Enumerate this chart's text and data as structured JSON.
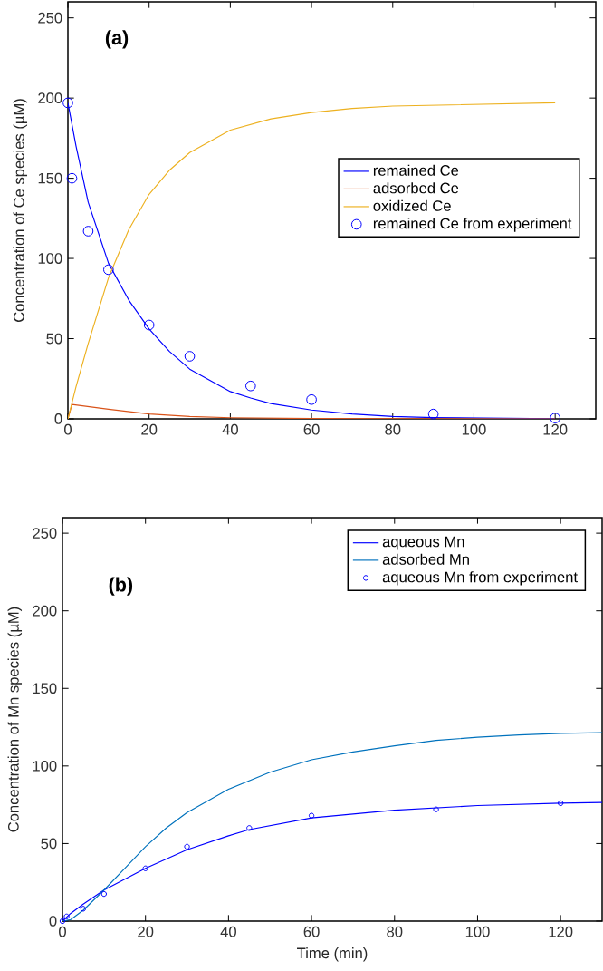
{
  "chart_data": [
    {
      "type": "line",
      "annotations": [
        "(a)"
      ],
      "ylabel": "Concentration of Ce species (µM)",
      "xlim": [
        0,
        130
      ],
      "ylim": [
        0,
        260
      ],
      "xticks": [
        0,
        20,
        40,
        60,
        80,
        100,
        120
      ],
      "yticks": [
        0,
        50,
        100,
        150,
        200,
        250
      ],
      "legend": "right",
      "series": [
        {
          "name": "remained Ce",
          "color": "#0000ff",
          "x": [
            0,
            2,
            5,
            10,
            15,
            20,
            25,
            30,
            40,
            45,
            50,
            60,
            70,
            80,
            90,
            120
          ],
          "values": [
            197,
            170,
            135,
            97,
            74,
            56,
            42,
            31,
            17,
            13,
            9.5,
            5.5,
            3,
            1.5,
            0.8,
            0.1
          ]
        },
        {
          "name": "adsorbed Ce",
          "color": "#d95319",
          "x": [
            0,
            1,
            10,
            20,
            30,
            40,
            60,
            120
          ],
          "values": [
            0,
            9,
            6,
            3,
            1.5,
            0.7,
            0.2,
            0
          ]
        },
        {
          "name": "oxidized Ce",
          "color": "#edb120",
          "x": [
            0,
            2,
            5,
            10,
            15,
            20,
            25,
            30,
            40,
            50,
            60,
            70,
            80,
            100,
            120
          ],
          "values": [
            0,
            20,
            47,
            88,
            118,
            140,
            155,
            166,
            180,
            187,
            191,
            193.5,
            195,
            196,
            197
          ]
        },
        {
          "name": "remained Ce from experiment",
          "type": "scatter",
          "marker": "circle",
          "color": "#0000ff",
          "x": [
            0,
            1,
            5,
            10,
            20,
            30,
            45,
            60,
            90,
            120
          ],
          "values": [
            197,
            150,
            117,
            93,
            58.5,
            39,
            20.5,
            12,
            3,
            0.5
          ]
        }
      ]
    },
    {
      "type": "line",
      "annotations": [
        "(b)"
      ],
      "xlabel": "Time (min)",
      "ylabel": "Concentration of Mn species (µM)",
      "xlim": [
        0,
        130
      ],
      "ylim": [
        0,
        260
      ],
      "xticks": [
        0,
        20,
        40,
        60,
        80,
        100,
        120
      ],
      "yticks": [
        0,
        50,
        100,
        150,
        200,
        250
      ],
      "legend": "top right",
      "series": [
        {
          "name": "aqueous Mn",
          "color": "#0000ff",
          "x": [
            0,
            2,
            5,
            10,
            15,
            20,
            30,
            40,
            45,
            60,
            80,
            100,
            120,
            130
          ],
          "values": [
            0,
            5,
            11,
            20,
            27,
            34,
            46,
            55,
            59,
            66.5,
            71.5,
            74.5,
            76,
            76.5
          ]
        },
        {
          "name": "adsorbed Mn",
          "color": "#0072bd",
          "x": [
            0,
            2,
            5,
            10,
            15,
            20,
            25,
            30,
            40,
            50,
            60,
            70,
            80,
            90,
            100,
            110,
            120,
            130
          ],
          "values": [
            0,
            1,
            7,
            20,
            34,
            48,
            60,
            70,
            85,
            96,
            104,
            109,
            113,
            116.5,
            118.5,
            120,
            121,
            121.5
          ]
        },
        {
          "name": "aqueous Mn from experiment",
          "type": "scatter",
          "marker": "circle",
          "color": "#0000ff",
          "x": [
            0,
            1,
            5,
            10,
            20,
            30,
            45,
            60,
            90,
            120
          ],
          "values": [
            0,
            3,
            8,
            17.5,
            34,
            48,
            60,
            68,
            72,
            76
          ]
        }
      ]
    }
  ]
}
